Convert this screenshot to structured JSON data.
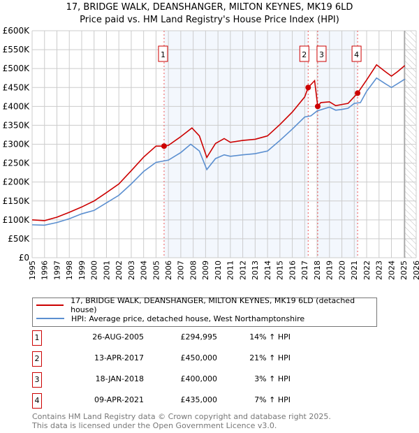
{
  "chart_data": {
    "type": "line",
    "title": "17, BRIDGE WALK, DEANSHANGER, MILTON KEYNES, MK19 6LD",
    "subtitle": "Price paid vs. HM Land Registry's House Price Index (HPI)",
    "xlim": [
      1995,
      2026
    ],
    "ylim": [
      0,
      600000
    ],
    "x_ticks": [
      "1995",
      "1996",
      "1997",
      "1998",
      "1999",
      "2000",
      "2001",
      "2002",
      "2003",
      "2004",
      "2005",
      "2006",
      "2007",
      "2008",
      "2009",
      "2010",
      "2011",
      "2012",
      "2013",
      "2014",
      "2015",
      "2016",
      "2017",
      "2018",
      "2019",
      "2020",
      "2021",
      "2022",
      "2023",
      "2024",
      "2025",
      "2026"
    ],
    "y_ticks": [
      {
        "v": 0,
        "label": "£0"
      },
      {
        "v": 50000,
        "label": "£50K"
      },
      {
        "v": 100000,
        "label": "£100K"
      },
      {
        "v": 150000,
        "label": "£150K"
      },
      {
        "v": 200000,
        "label": "£200K"
      },
      {
        "v": 250000,
        "label": "£250K"
      },
      {
        "v": 300000,
        "label": "£300K"
      },
      {
        "v": 350000,
        "label": "£350K"
      },
      {
        "v": 400000,
        "label": "£400K"
      },
      {
        "v": 450000,
        "label": "£450K"
      },
      {
        "v": 500000,
        "label": "£500K"
      },
      {
        "v": 550000,
        "label": "£550K"
      },
      {
        "v": 600000,
        "label": "£600K"
      }
    ],
    "grid": true,
    "data_end": 2025.08,
    "series": [
      {
        "name": "17, BRIDGE WALK, DEANSHANGER, MILTON KEYNES, MK19 6LD (detached house)",
        "color": "#cc0000",
        "points": [
          [
            1995,
            100
          ],
          [
            1996,
            98
          ],
          [
            1997,
            107
          ],
          [
            1998,
            120
          ],
          [
            1999,
            134
          ],
          [
            2000,
            150
          ],
          [
            2001,
            172
          ],
          [
            2002,
            195
          ],
          [
            2003,
            230
          ],
          [
            2004,
            266
          ],
          [
            2005,
            295
          ],
          [
            2005.65,
            295
          ],
          [
            2006,
            297
          ],
          [
            2007,
            320
          ],
          [
            2007.9,
            343
          ],
          [
            2008.5,
            322
          ],
          [
            2009.1,
            265
          ],
          [
            2009.8,
            302
          ],
          [
            2010.5,
            315
          ],
          [
            2011,
            305
          ],
          [
            2012,
            310
          ],
          [
            2013,
            313
          ],
          [
            2014,
            322
          ],
          [
            2015,
            352
          ],
          [
            2016,
            385
          ],
          [
            2017,
            425
          ],
          [
            2017.28,
            450
          ],
          [
            2017.8,
            468
          ],
          [
            2018.05,
            400
          ],
          [
            2018.3,
            410
          ],
          [
            2019,
            412
          ],
          [
            2019.5,
            402
          ],
          [
            2020,
            405
          ],
          [
            2020.5,
            408
          ],
          [
            2021.27,
            435
          ],
          [
            2022,
            470
          ],
          [
            2022.8,
            510
          ],
          [
            2023.5,
            492
          ],
          [
            2024,
            480
          ],
          [
            2024.5,
            492
          ],
          [
            2025.08,
            508
          ]
        ]
      },
      {
        "name": "HPI: Average price, detached house, West Northamptonshire",
        "color": "#5b8fd0",
        "points": [
          [
            1995,
            87
          ],
          [
            1996,
            86
          ],
          [
            1997,
            93
          ],
          [
            1998,
            103
          ],
          [
            1999,
            116
          ],
          [
            2000,
            125
          ],
          [
            2001,
            145
          ],
          [
            2002,
            165
          ],
          [
            2003,
            195
          ],
          [
            2004,
            228
          ],
          [
            2005,
            252
          ],
          [
            2005.5,
            255
          ],
          [
            2006,
            258
          ],
          [
            2007,
            278
          ],
          [
            2007.8,
            300
          ],
          [
            2008.5,
            282
          ],
          [
            2009.1,
            233
          ],
          [
            2009.8,
            262
          ],
          [
            2010.5,
            272
          ],
          [
            2011,
            268
          ],
          [
            2012,
            272
          ],
          [
            2013,
            275
          ],
          [
            2014,
            282
          ],
          [
            2015,
            310
          ],
          [
            2016,
            340
          ],
          [
            2017,
            372
          ],
          [
            2017.5,
            375
          ],
          [
            2018,
            388
          ],
          [
            2019,
            398
          ],
          [
            2019.5,
            390
          ],
          [
            2020,
            392
          ],
          [
            2020.5,
            395
          ],
          [
            2021,
            408
          ],
          [
            2021.5,
            410
          ],
          [
            2022,
            440
          ],
          [
            2022.8,
            475
          ],
          [
            2023.5,
            460
          ],
          [
            2024,
            450
          ],
          [
            2024.5,
            460
          ],
          [
            2025.08,
            472
          ]
        ]
      }
    ],
    "sales": [
      {
        "n": "1",
        "x": 2005.65,
        "y": 294995,
        "date": "26-AUG-2005",
        "price": "£294,995",
        "hpi": "14% ↑ HPI"
      },
      {
        "n": "2",
        "x": 2017.28,
        "y": 450000,
        "date": "13-APR-2017",
        "price": "£450,000",
        "hpi": "21% ↑ HPI"
      },
      {
        "n": "3",
        "x": 2018.05,
        "y": 400000,
        "date": "18-JAN-2018",
        "price": "£400,000",
        "hpi": "3% ↑ HPI"
      },
      {
        "n": "4",
        "x": 2021.27,
        "y": 435000,
        "date": "09-APR-2021",
        "price": "£435,000",
        "hpi": "7% ↑ HPI"
      }
    ]
  },
  "legend": {
    "red": "17, BRIDGE WALK, DEANSHANGER, MILTON KEYNES, MK19 6LD (detached house)",
    "blue": "HPI: Average price, detached house, West Northamptonshire"
  },
  "footer": {
    "line1": "Contains HM Land Registry data © Crown copyright and database right 2025.",
    "line2": "This data is licensed under the Open Government Licence v3.0."
  }
}
